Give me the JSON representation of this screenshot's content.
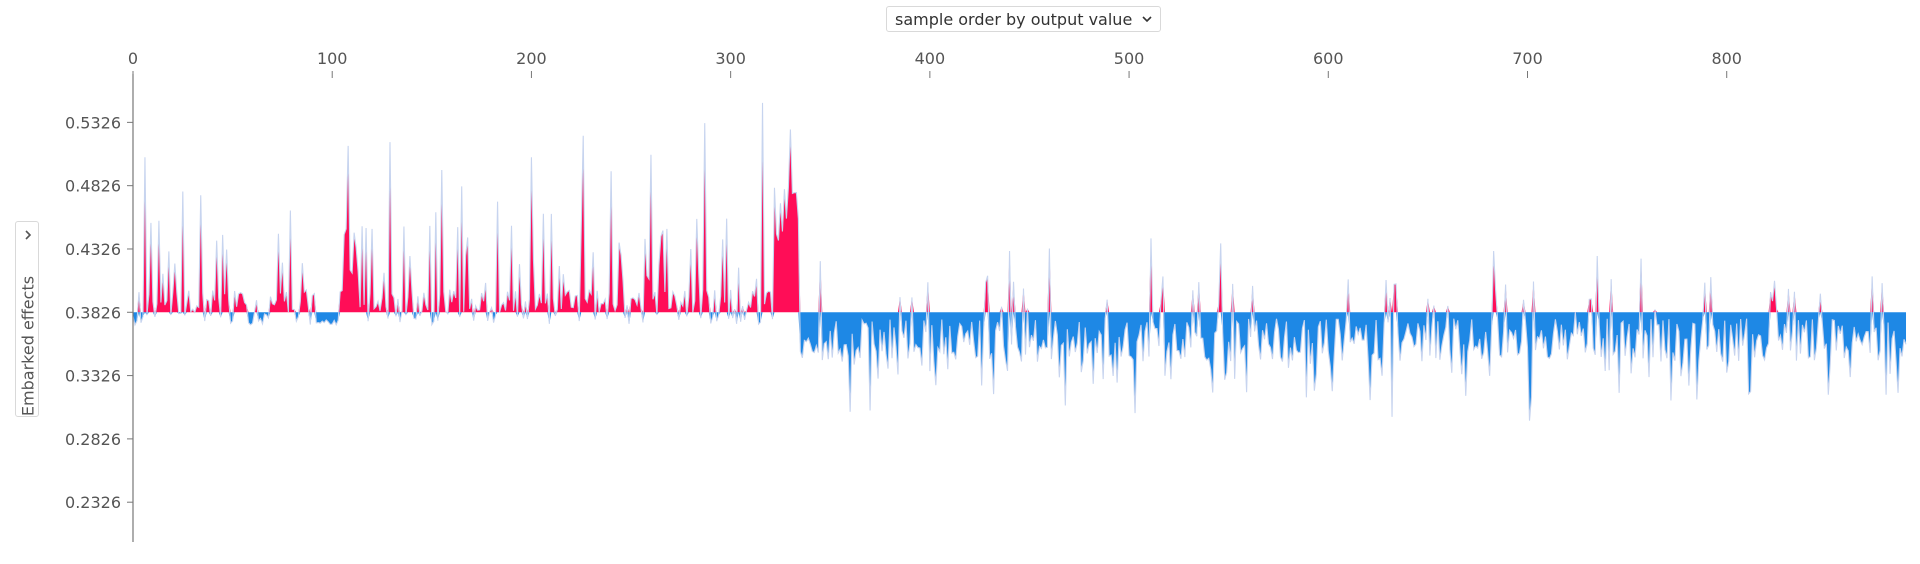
{
  "controls": {
    "order_select_label": "sample order by output value",
    "y_select_label": "Embarked effects"
  },
  "colors": {
    "positive": "#ff0d57",
    "negative": "#1e88e5",
    "positive_light": "#ffc3d5",
    "negative_light": "#d1e6fa",
    "axis": "#777777"
  },
  "icons": {
    "order_dropdown": "chevron-down-icon",
    "y_dropdown": "chevron-right-icon"
  },
  "chart_data": {
    "type": "area",
    "title": "",
    "xlabel": "",
    "ylabel": "Embarked effects",
    "base_value": 0.3826,
    "x_ticks": [
      0,
      100,
      200,
      300,
      400,
      500,
      600,
      700,
      800
    ],
    "y_ticks": [
      0.5326,
      0.4826,
      0.4326,
      0.3826,
      0.3326,
      0.2826,
      0.2326
    ],
    "xlim": [
      0,
      891
    ],
    "ylim": [
      0.198,
      0.5708
    ],
    "grid": false,
    "legend": "none",
    "n_samples": 891,
    "note_shape": "Samples 0-335 mostly positive effect (red), peaks up to about 0.53; samples 335-891 mostly negative (blue), troughs down to about 0.30 with sparse small positive spikes.",
    "peaks": [
      {
        "x": 6,
        "y": 0.505
      },
      {
        "x": 25,
        "y": 0.478
      },
      {
        "x": 34,
        "y": 0.475
      },
      {
        "x": 79,
        "y": 0.463
      },
      {
        "x": 108,
        "y": 0.514
      },
      {
        "x": 129,
        "y": 0.517
      },
      {
        "x": 155,
        "y": 0.495
      },
      {
        "x": 165,
        "y": 0.482
      },
      {
        "x": 183,
        "y": 0.47
      },
      {
        "x": 200,
        "y": 0.505
      },
      {
        "x": 226,
        "y": 0.522
      },
      {
        "x": 240,
        "y": 0.494
      },
      {
        "x": 260,
        "y": 0.507
      },
      {
        "x": 287,
        "y": 0.532
      },
      {
        "x": 316,
        "y": 0.548
      },
      {
        "x": 330,
        "y": 0.527
      },
      {
        "x": 345,
        "y": 0.423
      },
      {
        "x": 440,
        "y": 0.431
      },
      {
        "x": 460,
        "y": 0.433
      },
      {
        "x": 511,
        "y": 0.441
      },
      {
        "x": 546,
        "y": 0.437
      },
      {
        "x": 683,
        "y": 0.431
      },
      {
        "x": 735,
        "y": 0.427
      },
      {
        "x": 757,
        "y": 0.425
      }
    ],
    "troughs": [
      {
        "x": 360,
        "y": 0.304
      },
      {
        "x": 370,
        "y": 0.305
      },
      {
        "x": 432,
        "y": 0.318
      },
      {
        "x": 468,
        "y": 0.309
      },
      {
        "x": 503,
        "y": 0.303
      },
      {
        "x": 553,
        "y": 0.33
      },
      {
        "x": 632,
        "y": 0.3
      },
      {
        "x": 701,
        "y": 0.297
      },
      {
        "x": 746,
        "y": 0.319
      },
      {
        "x": 812,
        "y": 0.32
      },
      {
        "x": 882,
        "y": 0.334
      }
    ]
  }
}
